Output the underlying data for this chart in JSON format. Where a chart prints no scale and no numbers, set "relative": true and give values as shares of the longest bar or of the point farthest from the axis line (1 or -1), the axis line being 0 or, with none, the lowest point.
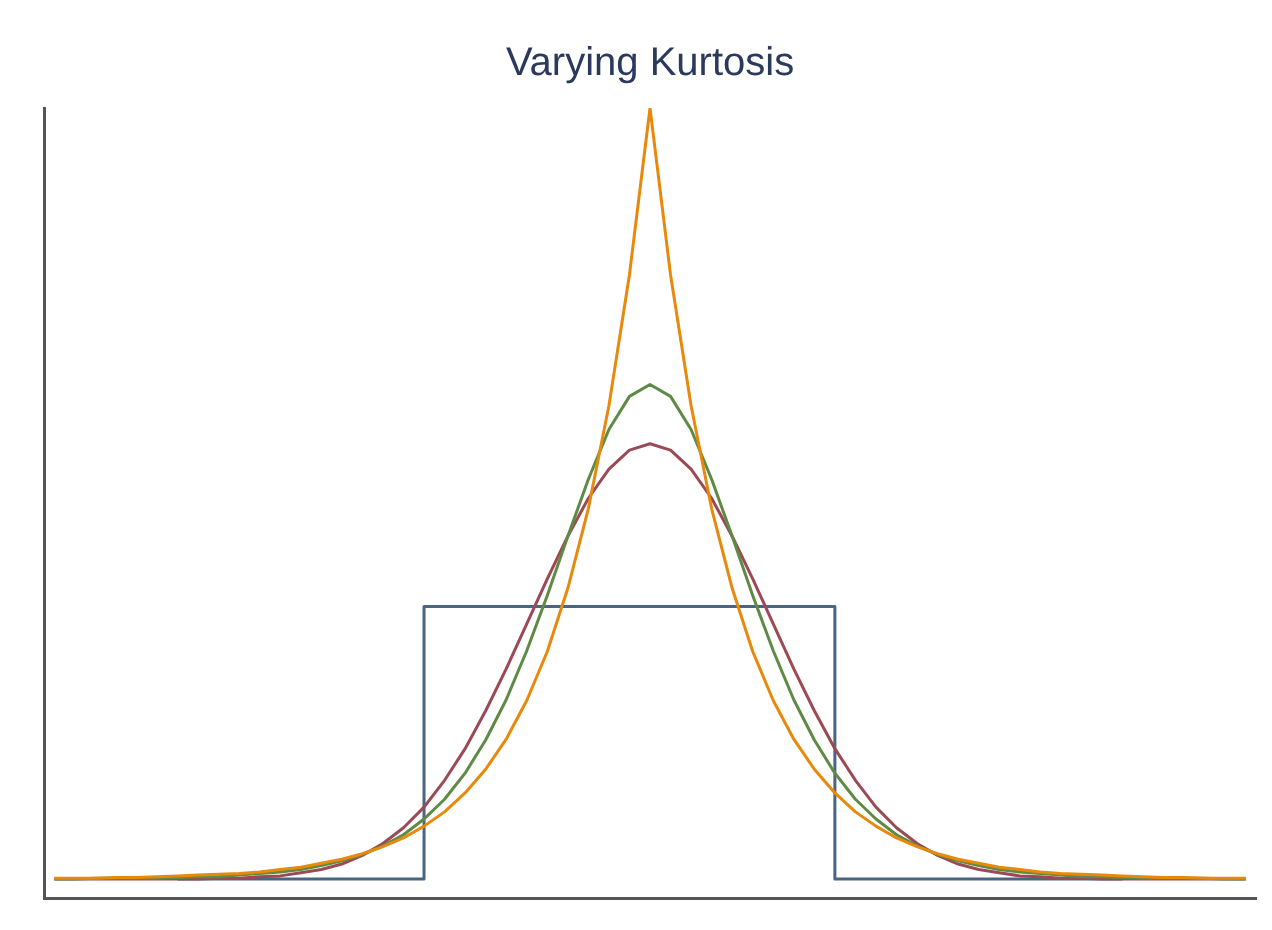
{
  "chart_data": {
    "type": "line",
    "title": "Varying Kurtosis",
    "relative": true,
    "tick_labels": false,
    "grid": false,
    "categories": [
      null,
      null,
      null,
      null,
      null,
      null,
      null,
      null,
      null,
      null,
      null,
      null,
      null,
      null,
      null,
      null,
      null,
      null,
      null,
      null,
      null,
      null,
      null,
      null,
      null,
      null,
      null,
      null,
      null,
      null,
      null,
      null,
      null,
      null,
      null,
      null,
      null,
      null,
      null,
      null,
      null,
      null,
      null,
      null,
      null,
      null,
      null,
      null,
      null,
      null,
      null,
      null,
      null,
      null,
      null,
      null,
      null,
      null,
      null
    ],
    "series": [
      {
        "type": "step",
        "color": "#4a6583",
        "values": [
          null,
          null,
          null,
          null,
          null,
          null,
          0.024,
          0.024,
          0.024,
          0.024,
          0.024,
          0.024,
          0.024,
          0.024,
          0.024,
          0.024,
          0.024,
          0.024,
          0.024,
          0.369,
          0.369,
          0.369,
          0.369,
          0.369,
          0.369,
          0.369,
          0.369,
          0.369,
          0.369,
          0.369,
          0.369,
          0.369,
          0.369,
          0.369,
          0.369,
          0.369,
          0.369,
          0.369,
          0.369,
          0.024,
          0.024,
          0.024,
          0.024,
          0.024,
          0.024,
          0.024,
          0.024,
          0.024,
          0.024,
          0.024,
          0.024,
          0.024,
          0.024,
          null,
          null,
          null,
          null,
          null,
          null
        ]
      },
      {
        "color": "#9b4a55",
        "values": [
          0.024,
          0.024,
          0.024,
          0.024,
          0.024,
          0.024,
          0.024,
          0.024,
          0.025,
          0.025,
          0.027,
          0.028,
          0.032,
          0.036,
          0.043,
          0.054,
          0.069,
          0.089,
          0.115,
          0.149,
          0.189,
          0.237,
          0.29,
          0.347,
          0.404,
          0.458,
          0.506,
          0.543,
          0.567,
          0.575,
          0.567,
          0.543,
          0.506,
          0.458,
          0.404,
          0.347,
          0.29,
          0.237,
          0.189,
          0.149,
          0.115,
          0.089,
          0.069,
          0.054,
          0.043,
          0.036,
          0.032,
          0.028,
          0.027,
          0.025,
          0.025,
          0.024,
          0.024,
          0.024,
          0.024,
          0.024,
          0.024,
          0.024,
          0.024
        ]
      },
      {
        "color": "#5f8a45",
        "values": [
          0.024,
          0.024,
          0.025,
          0.025,
          0.025,
          0.025,
          0.026,
          0.027,
          0.027,
          0.029,
          0.031,
          0.033,
          0.036,
          0.041,
          0.047,
          0.055,
          0.066,
          0.08,
          0.1,
          0.125,
          0.158,
          0.2,
          0.251,
          0.313,
          0.383,
          0.458,
          0.53,
          0.593,
          0.635,
          0.65,
          0.635,
          0.593,
          0.53,
          0.458,
          0.383,
          0.313,
          0.251,
          0.2,
          0.158,
          0.125,
          0.1,
          0.08,
          0.066,
          0.055,
          0.047,
          0.041,
          0.036,
          0.033,
          0.031,
          0.029,
          0.027,
          0.027,
          0.026,
          0.025,
          0.025,
          0.025,
          0.025,
          0.024,
          0.024
        ]
      },
      {
        "color": "#e8890c",
        "values": [
          0.025,
          0.025,
          0.025,
          0.026,
          0.026,
          0.027,
          0.028,
          0.029,
          0.03,
          0.031,
          0.033,
          0.036,
          0.039,
          0.044,
          0.049,
          0.056,
          0.065,
          0.076,
          0.091,
          0.109,
          0.133,
          0.163,
          0.201,
          0.25,
          0.312,
          0.392,
          0.493,
          0.623,
          0.789,
          1.0,
          0.789,
          0.623,
          0.493,
          0.392,
          0.312,
          0.25,
          0.201,
          0.163,
          0.133,
          0.109,
          0.091,
          0.076,
          0.065,
          0.056,
          0.049,
          0.044,
          0.039,
          0.036,
          0.033,
          0.031,
          0.03,
          0.029,
          0.028,
          0.027,
          0.026,
          0.026,
          0.025,
          0.025,
          0.025
        ]
      }
    ]
  }
}
